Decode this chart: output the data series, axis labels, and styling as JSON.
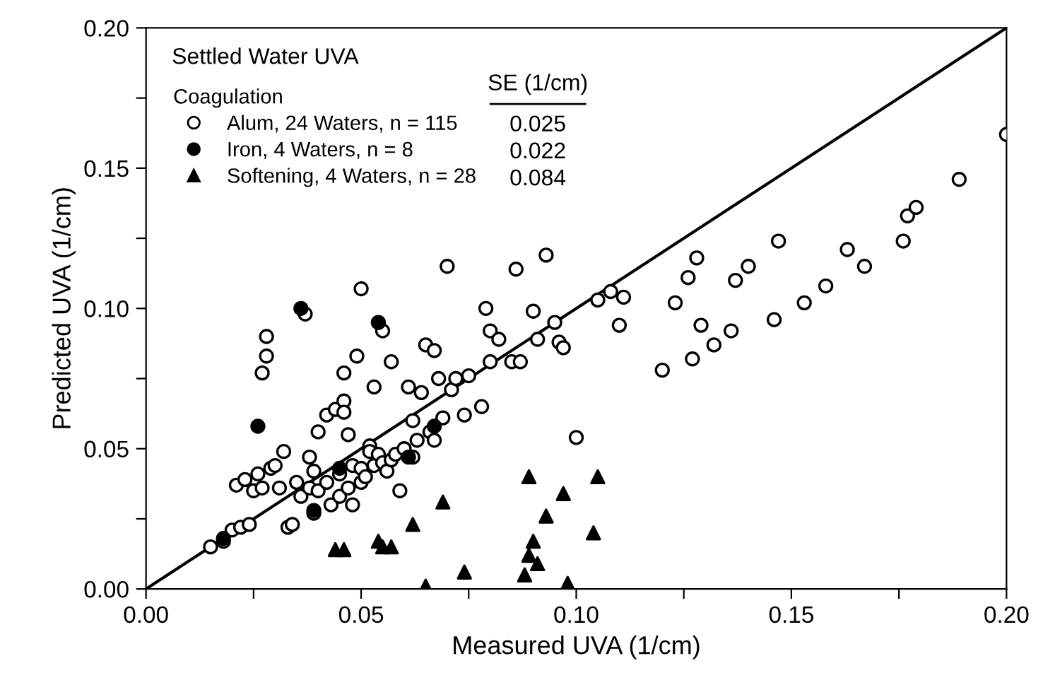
{
  "chart_data": {
    "type": "scatter",
    "title": "Settled Water UVA",
    "legend_title": "Coagulation",
    "xlabel": "Measured UVA (1/cm)",
    "ylabel": "Predicted UVA (1/cm)",
    "xlim": [
      0,
      0.2
    ],
    "ylim": [
      0,
      0.2
    ],
    "xticks": [
      {
        "value": 0,
        "label": "0.00"
      },
      {
        "value": 0.025,
        "label": null
      },
      0.05,
      {
        "value": 0.075,
        "label": null
      },
      {
        "value": 0.1,
        "label": "0.10"
      },
      {
        "value": 0.125,
        "label": null
      },
      0.15,
      {
        "value": 0.175,
        "label": null
      },
      {
        "value": 0.2,
        "label": "0.20"
      }
    ],
    "yticks": [
      {
        "value": 0,
        "label": "0.00"
      },
      {
        "value": 0.025,
        "label": null
      },
      0.05,
      {
        "value": 0.075,
        "label": null
      },
      {
        "value": 0.1,
        "label": "0.10"
      },
      {
        "value": 0.125,
        "label": null
      },
      0.15,
      {
        "value": 0.175,
        "label": null
      },
      {
        "value": 0.2,
        "label": "0.20"
      }
    ],
    "grid": false,
    "legend": "top left",
    "annotations": [
      "SE (1/cm)",
      "0.025",
      "0.022",
      "0.084"
    ],
    "series": [
      {
        "name": "Alum, 24 Waters, n = 115",
        "color": "#ffffff",
        "marker": "circle",
        "x": [
          0.015,
          0.018,
          0.02,
          0.021,
          0.022,
          0.023,
          0.024,
          0.025,
          0.026,
          0.027,
          0.027,
          0.028,
          0.028,
          0.029,
          0.03,
          0.031,
          0.032,
          0.033,
          0.034,
          0.035,
          0.036,
          0.037,
          0.038,
          0.038,
          0.039,
          0.039,
          0.04,
          0.04,
          0.042,
          0.042,
          0.043,
          0.044,
          0.045,
          0.045,
          0.046,
          0.046,
          0.046,
          0.047,
          0.047,
          0.048,
          0.048,
          0.049,
          0.05,
          0.05,
          0.05,
          0.051,
          0.052,
          0.052,
          0.053,
          0.053,
          0.054,
          0.055,
          0.055,
          0.056,
          0.057,
          0.057,
          0.058,
          0.059,
          0.06,
          0.061,
          0.062,
          0.062,
          0.063,
          0.064,
          0.065,
          0.066,
          0.067,
          0.067,
          0.068,
          0.069,
          0.07,
          0.071,
          0.072,
          0.074,
          0.075,
          0.078,
          0.079,
          0.08,
          0.08,
          0.082,
          0.085,
          0.086,
          0.087,
          0.09,
          0.091,
          0.093,
          0.095,
          0.096,
          0.097,
          0.1,
          0.105,
          0.108,
          0.11,
          0.111,
          0.12,
          0.123,
          0.126,
          0.127,
          0.128,
          0.129,
          0.132,
          0.136,
          0.137,
          0.14,
          0.146,
          0.147,
          0.153,
          0.158,
          0.163,
          0.167,
          0.176,
          0.177,
          0.179,
          0.189,
          0.2
        ],
        "values": [
          0.015,
          0.017,
          0.021,
          0.037,
          0.022,
          0.039,
          0.023,
          0.035,
          0.041,
          0.036,
          0.077,
          0.083,
          0.09,
          0.043,
          0.044,
          0.036,
          0.049,
          0.022,
          0.023,
          0.038,
          0.033,
          0.098,
          0.047,
          0.036,
          0.027,
          0.042,
          0.035,
          0.056,
          0.038,
          0.062,
          0.03,
          0.064,
          0.033,
          0.041,
          0.067,
          0.063,
          0.077,
          0.036,
          0.055,
          0.044,
          0.03,
          0.083,
          0.107,
          0.038,
          0.043,
          0.04,
          0.051,
          0.049,
          0.044,
          0.072,
          0.048,
          0.092,
          0.045,
          0.042,
          0.081,
          0.046,
          0.048,
          0.035,
          0.05,
          0.072,
          0.047,
          0.06,
          0.053,
          0.07,
          0.087,
          0.056,
          0.085,
          0.053,
          0.075,
          0.061,
          0.115,
          0.071,
          0.075,
          0.062,
          0.076,
          0.065,
          0.1,
          0.081,
          0.092,
          0.089,
          0.081,
          0.114,
          0.081,
          0.099,
          0.089,
          0.119,
          0.095,
          0.088,
          0.086,
          0.054,
          0.103,
          0.106,
          0.094,
          0.104,
          0.078,
          0.102,
          0.111,
          0.082,
          0.118,
          0.094,
          0.087,
          0.092,
          0.11,
          0.115,
          0.096,
          0.124,
          0.102,
          0.108,
          0.121,
          0.115,
          0.124,
          0.133,
          0.136,
          0.146,
          0.162
        ]
      },
      {
        "name": "Iron, 4 Waters, n = 8",
        "color": "#000000",
        "marker": "circle",
        "x": [
          0.018,
          0.026,
          0.036,
          0.039,
          0.045,
          0.054,
          0.061,
          0.067
        ],
        "values": [
          0.018,
          0.058,
          0.1,
          0.028,
          0.043,
          0.095,
          0.047,
          0.058
        ]
      },
      {
        "name": "Softening, 4 Waters, n = 28",
        "color": "#000000",
        "marker": "triangle",
        "x": [
          0.044,
          0.046,
          0.054,
          0.055,
          0.057,
          0.062,
          0.065,
          0.069,
          0.074,
          0.088,
          0.089,
          0.089,
          0.09,
          0.091,
          0.093,
          0.097,
          0.098,
          0.104,
          0.105
        ],
        "values": [
          0.014,
          0.014,
          0.017,
          0.015,
          0.015,
          0.023,
          0.001,
          0.031,
          0.006,
          0.005,
          0.04,
          0.012,
          0.017,
          0.009,
          0.026,
          0.034,
          0.002,
          0.02,
          0.04
        ]
      },
      {
        "type": "line",
        "color": "#000000",
        "x": [
          0,
          0.2
        ],
        "values": [
          0,
          0.2
        ]
      }
    ]
  }
}
